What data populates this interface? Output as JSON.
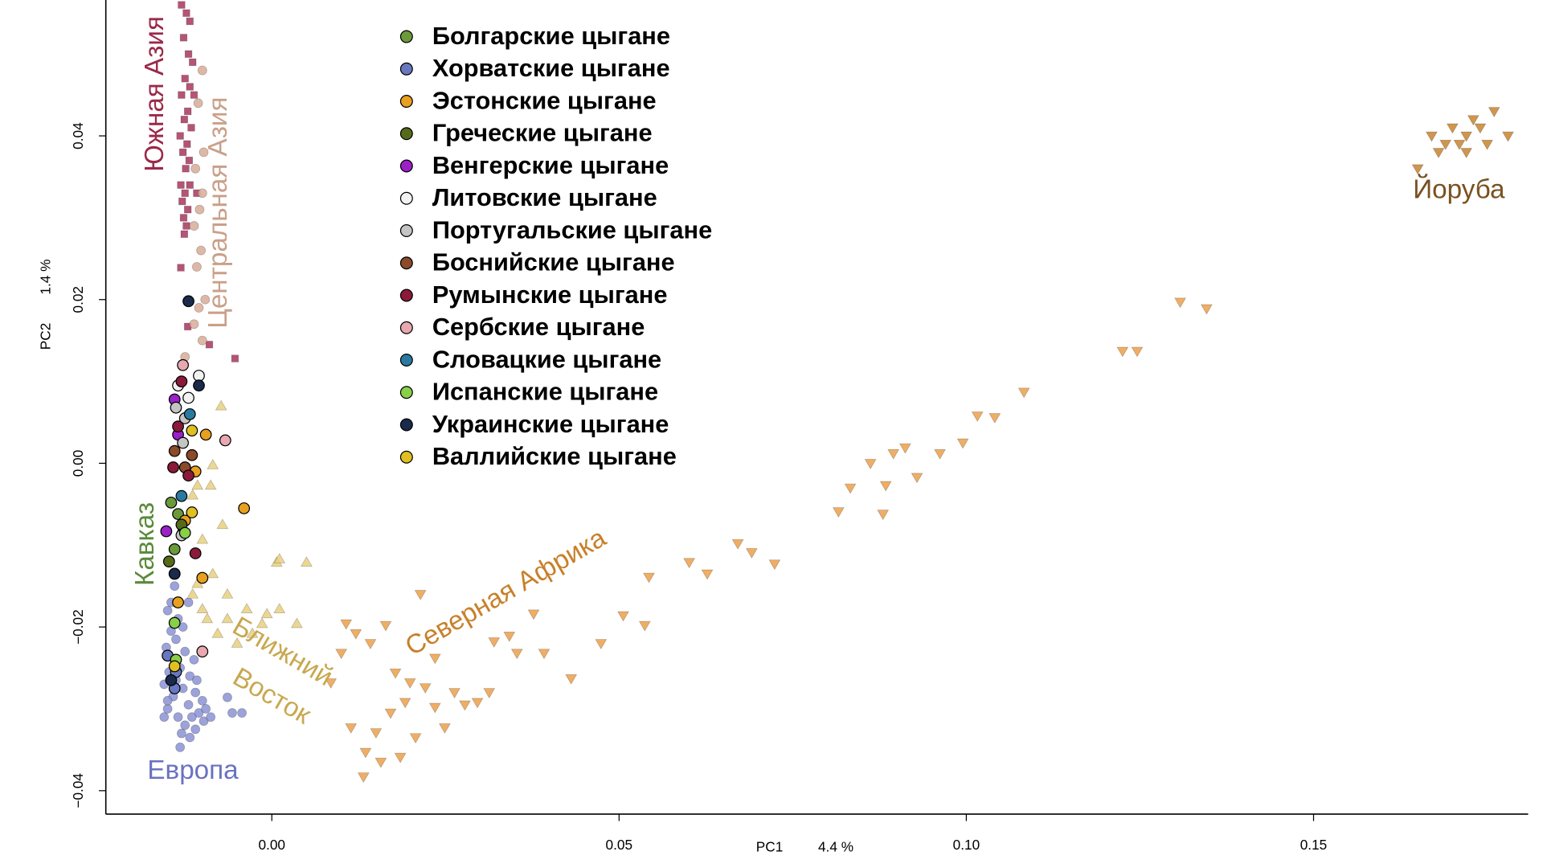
{
  "chart_data": {
    "type": "scatter",
    "xlabel": "PC1",
    "xlabel_pct": "4.4 %",
    "ylabel": "PC2",
    "ylabel_pct": "1.4 %",
    "xlim": [
      -0.0239,
      0.1809
    ],
    "ylim": [
      -0.0431,
      0.0566
    ],
    "xticks": [
      {
        "value": 0,
        "label": "0.00"
      },
      0.05,
      {
        "value": 0.1,
        "label": "0.10"
      },
      0.15
    ],
    "yticks": [
      {
        "value": -0.04,
        "label": "−0.04"
      },
      {
        "value": -0.02,
        "label": "−0.02"
      },
      {
        "value": 0,
        "label": "0.00"
      },
      {
        "value": 0.02,
        "label": "0.02"
      },
      {
        "value": 0.04,
        "label": "0.04"
      }
    ],
    "grid": false,
    "reference_groups": [
      {
        "color": "#8b93d4",
        "marker": "circle",
        "x": [
          -0.015,
          -0.0145,
          -0.0152,
          -0.014,
          -0.0148,
          -0.0155,
          -0.0142,
          -0.015,
          -0.0135,
          -0.0125,
          -0.0115,
          -0.0105,
          -0.0098,
          -0.011,
          -0.013,
          -0.012,
          -0.0128,
          -0.0118,
          -0.0132,
          -0.0125,
          -0.0138,
          -0.0128,
          -0.0135,
          -0.0145,
          -0.011,
          -0.01,
          -0.0108,
          -0.0095,
          -0.0132,
          -0.0057,
          -0.0043,
          -0.0064,
          -0.014,
          -0.012,
          -0.0112,
          -0.0155,
          -0.0118,
          -0.0088,
          -0.015,
          -0.0138
        ],
        "y": [
          -0.018,
          -0.0205,
          -0.0225,
          -0.024,
          -0.0255,
          -0.027,
          -0.0285,
          -0.03,
          -0.031,
          -0.032,
          -0.031,
          -0.0305,
          -0.0315,
          -0.0325,
          -0.033,
          -0.0295,
          -0.0275,
          -0.026,
          -0.025,
          -0.023,
          -0.0215,
          -0.02,
          -0.019,
          -0.017,
          -0.028,
          -0.029,
          -0.0265,
          -0.03,
          -0.0347,
          -0.0305,
          -0.0305,
          -0.0286,
          -0.015,
          -0.017,
          -0.024,
          -0.031,
          -0.0335,
          -0.031,
          -0.029,
          -0.0265
        ]
      },
      {
        "color": "#e9d07f",
        "marker": "triangle-up",
        "x": [
          -0.0073,
          -0.0085,
          -0.0107,
          -0.0114,
          -0.0088,
          0.0007,
          0.0011,
          0.005,
          -0.0085,
          -0.0107,
          -0.0064,
          -0.0114,
          -0.0036,
          -0.0007,
          0.0011,
          -0.0014,
          -0.0064,
          -0.0093,
          0.0036,
          -0.0028,
          -0.005,
          -0.0078,
          -0.01,
          -0.01,
          -0.0071
        ],
        "y": [
          0.007,
          -0.0002,
          -0.0027,
          -0.0039,
          -0.0027,
          -0.0121,
          -0.0117,
          -0.0121,
          -0.0135,
          -0.0147,
          -0.016,
          -0.016,
          -0.0178,
          -0.0184,
          -0.0178,
          -0.0196,
          -0.019,
          -0.019,
          -0.0196,
          -0.0208,
          -0.022,
          -0.0208,
          -0.0178,
          -0.0093,
          -0.0075
        ]
      },
      {
        "color": "#eca04a",
        "marker": "triangle-down",
        "x": [
          0.1308,
          0.1346,
          0.1225,
          0.1246,
          0.1083,
          0.1016,
          0.1041,
          0.0995,
          0.0962,
          0.0912,
          0.0895,
          0.0862,
          0.0929,
          0.0884,
          0.0833,
          0.0816,
          0.088,
          0.0671,
          0.0691,
          0.0724,
          0.0601,
          0.0627,
          0.0543,
          0.0506,
          0.0537,
          0.0474,
          0.0431,
          0.0377,
          0.0342,
          0.032,
          0.0353,
          0.0392,
          0.0313,
          0.0263,
          0.0235,
          0.0214,
          0.0199,
          0.0178,
          0.0171,
          0.015,
          0.0135,
          0.0157,
          0.0185,
          0.0121,
          0.0107,
          0.01,
          0.0114,
          0.0132,
          0.0207,
          0.0249,
          0.0221,
          0.0192,
          0.0235,
          0.0278,
          0.0296,
          0.0164,
          0.0142,
          0.0085
        ],
        "y": [
          0.0197,
          0.0189,
          0.0137,
          0.0137,
          0.0087,
          0.0058,
          0.0056,
          0.0025,
          0.0012,
          0.0019,
          0.0012,
          0,
          -0.0017,
          -0.0027,
          -0.003,
          -0.0059,
          -0.0062,
          -0.0098,
          -0.0109,
          -0.0123,
          -0.0121,
          -0.0135,
          -0.0139,
          -0.0186,
          -0.0198,
          -0.022,
          -0.0263,
          -0.0184,
          -0.0211,
          -0.0218,
          -0.0232,
          -0.0232,
          -0.028,
          -0.028,
          -0.0298,
          -0.016,
          -0.0268,
          -0.0256,
          -0.0305,
          -0.0329,
          -0.0353,
          -0.0365,
          -0.0359,
          -0.0208,
          -0.0196,
          -0.0232,
          -0.0323,
          -0.0383,
          -0.0335,
          -0.0323,
          -0.0274,
          -0.0292,
          -0.0238,
          -0.0295,
          -0.0292,
          -0.0198,
          -0.022,
          -0.0268
        ]
      },
      {
        "color": "#c8842e",
        "marker": "triangle-down",
        "x": [
          0.167,
          0.169,
          0.17,
          0.171,
          0.172,
          0.173,
          0.174,
          0.176,
          0.178,
          0.165,
          0.168,
          0.172,
          0.175
        ],
        "y": [
          0.04,
          0.039,
          0.041,
          0.039,
          0.04,
          0.042,
          0.041,
          0.043,
          0.04,
          0.036,
          0.038,
          0.038,
          0.039
        ]
      },
      {
        "color": "#a8365e",
        "marker": "square",
        "x": [
          -0.013,
          -0.0123,
          -0.0118,
          -0.0127,
          -0.012,
          -0.0114,
          -0.0125,
          -0.0118,
          -0.013,
          -0.0121,
          -0.0126,
          -0.0116,
          -0.0132,
          -0.0122,
          -0.0128,
          -0.0119,
          -0.0124,
          -0.0131,
          -0.0118,
          -0.0125,
          -0.0129,
          -0.0121,
          -0.0127,
          -0.0123,
          -0.0126,
          -0.0108,
          -0.0112,
          -0.0131,
          -0.0121,
          -0.009,
          -0.0053
        ],
        "y": [
          0.056,
          0.055,
          0.054,
          0.052,
          0.05,
          0.049,
          0.047,
          0.046,
          0.045,
          0.043,
          0.042,
          0.041,
          0.04,
          0.039,
          0.038,
          0.037,
          0.036,
          0.034,
          0.034,
          0.033,
          0.032,
          0.031,
          0.03,
          0.029,
          0.028,
          0.033,
          0.045,
          0.0239,
          0.0167,
          0.0145,
          0.0128
        ]
      },
      {
        "color": "#d8ab98",
        "marker": "circle",
        "x": [
          -0.01,
          -0.0106,
          -0.0098,
          -0.011,
          -0.01,
          -0.0104,
          -0.0112,
          -0.0102,
          -0.0108,
          -0.0096,
          -0.0105,
          -0.0112,
          -0.01,
          -0.0125
        ],
        "y": [
          0.048,
          0.044,
          0.038,
          0.036,
          0.033,
          0.031,
          0.029,
          0.026,
          0.024,
          0.02,
          0.019,
          0.017,
          0.015,
          0.013
        ]
      }
    ],
    "series": [
      {
        "name": "Болгарские цыгане",
        "color": "#6b9a3a",
        "x": [
          -0.0145,
          -0.0135,
          -0.0128,
          -0.014
        ],
        "y": [
          -0.0048,
          -0.0062,
          -0.0085,
          -0.0105
        ]
      },
      {
        "name": "Хорватские цыгане",
        "color": "#6878c0",
        "x": [
          -0.015,
          -0.014,
          -0.0138
        ],
        "y": [
          -0.0235,
          -0.0275,
          -0.0255
        ]
      },
      {
        "name": "Эстонские цыгане",
        "color": "#e8a020",
        "x": [
          -0.0125,
          -0.01,
          -0.0135,
          -0.004,
          -0.011,
          -0.0095
        ],
        "y": [
          -0.007,
          -0.014,
          -0.017,
          -0.0055,
          -0.001,
          0.0035
        ]
      },
      {
        "name": "Греческие цыгане",
        "color": "#556b1a",
        "x": [
          -0.014,
          -0.0148,
          -0.013
        ],
        "y": [
          -0.0135,
          -0.012,
          -0.0075
        ]
      },
      {
        "name": "Венгерские цыгане",
        "color": "#9b20c8",
        "x": [
          -0.0152,
          -0.0135,
          -0.014
        ],
        "y": [
          -0.0083,
          0.0035,
          0.0078
        ]
      },
      {
        "name": "Литовские цыгане",
        "color": "#f2f2f2",
        "x": [
          -0.0135,
          -0.0105,
          -0.012
        ],
        "y": [
          0.0095,
          0.0107,
          0.008
        ]
      },
      {
        "name": "Португальские цыгане",
        "color": "#c4c4c4",
        "x": [
          -0.0138,
          -0.0125,
          -0.0128,
          -0.013
        ],
        "y": [
          0.0068,
          0.0055,
          0.0025,
          -0.0088
        ]
      },
      {
        "name": "Боснийские цыгане",
        "color": "#8b4a2a",
        "x": [
          -0.014,
          -0.0115,
          -0.0125
        ],
        "y": [
          0.0015,
          0.001,
          -0.0005
        ]
      },
      {
        "name": "Румынские цыгане",
        "color": "#8a1a3a",
        "x": [
          -0.0142,
          -0.0135,
          -0.012,
          -0.013,
          -0.011
        ],
        "y": [
          -0.0005,
          0.0045,
          -0.0015,
          0.01,
          -0.011
        ]
      },
      {
        "name": "Сербские цыгане",
        "color": "#e8a8b0",
        "x": [
          -0.0067,
          -0.01,
          -0.0128
        ],
        "y": [
          0.0028,
          -0.023,
          0.012
        ]
      },
      {
        "name": "Словацкие цыгане",
        "color": "#2a7aa0",
        "x": [
          -0.013,
          -0.0118
        ],
        "y": [
          -0.004,
          0.006
        ]
      },
      {
        "name": "Испанские цыгане",
        "color": "#88d048",
        "x": [
          -0.014,
          -0.0138,
          -0.0125
        ],
        "y": [
          -0.0195,
          -0.024,
          -0.0085
        ]
      },
      {
        "name": "Украинские цыгане",
        "color": "#1a2a4a",
        "x": [
          -0.012,
          -0.0105,
          -0.0145,
          -0.014
        ],
        "y": [
          0.0198,
          0.0095,
          -0.0265,
          -0.0135
        ]
      },
      {
        "name": "Валлийские цыгане",
        "color": "#e0c020",
        "x": [
          -0.014,
          -0.0115,
          -0.0115
        ],
        "y": [
          -0.0248,
          0.004,
          -0.006
        ]
      }
    ],
    "annotations": [
      {
        "text": "Южная Азия",
        "color": "#9a2a4a"
      },
      {
        "text": "Центральная Азия",
        "color": "#c9a08a"
      },
      {
        "text": "Кавказ",
        "color": "#5a8a3a"
      },
      {
        "text": "Ближний",
        "color": "#c8a850"
      },
      {
        "text": "Восток",
        "color": "#c8a850"
      },
      {
        "text": "Северная Африка",
        "color": "#c8802a"
      },
      {
        "text": "Европа",
        "color": "#6a72c0"
      },
      {
        "text": "Йоруба",
        "color": "#7a5020"
      }
    ]
  }
}
